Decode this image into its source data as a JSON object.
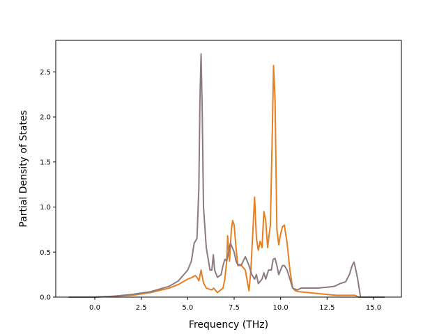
{
  "chart_data": {
    "type": "line",
    "title": "",
    "xlabel": "Frequency (THz)",
    "ylabel": "Partial Density of States",
    "xlim": [
      -2.1,
      16.5
    ],
    "ylim": [
      0.0,
      2.85
    ],
    "xticks": [
      0.0,
      2.5,
      5.0,
      7.5,
      10.0,
      12.5,
      15.0
    ],
    "xtick_labels": [
      "0.0",
      "2.5",
      "5.0",
      "7.5",
      "10.0",
      "12.5",
      "15.0"
    ],
    "yticks": [
      0.0,
      0.5,
      1.0,
      1.5,
      2.0,
      2.5
    ],
    "ytick_labels": [
      "0.0",
      "0.5",
      "1.0",
      "1.5",
      "2.0",
      "2.5"
    ],
    "grid": false,
    "legend": "none",
    "series": [
      {
        "color": "#e67e22",
        "points": [
          [
            -1.4,
            0.0
          ],
          [
            0.0,
            0.0
          ],
          [
            1.0,
            0.01
          ],
          [
            2.0,
            0.02
          ],
          [
            3.0,
            0.05
          ],
          [
            4.0,
            0.1
          ],
          [
            4.5,
            0.14
          ],
          [
            5.0,
            0.2
          ],
          [
            5.25,
            0.22
          ],
          [
            5.4,
            0.24
          ],
          [
            5.5,
            0.22
          ],
          [
            5.6,
            0.18
          ],
          [
            5.72,
            0.3
          ],
          [
            5.85,
            0.16
          ],
          [
            6.0,
            0.1
          ],
          [
            6.3,
            0.08
          ],
          [
            6.4,
            0.1
          ],
          [
            6.6,
            0.05
          ],
          [
            6.9,
            0.1
          ],
          [
            7.0,
            0.2
          ],
          [
            7.1,
            0.4
          ],
          [
            7.15,
            0.68
          ],
          [
            7.25,
            0.4
          ],
          [
            7.35,
            0.75
          ],
          [
            7.42,
            0.85
          ],
          [
            7.5,
            0.8
          ],
          [
            7.6,
            0.55
          ],
          [
            7.7,
            0.35
          ],
          [
            7.9,
            0.35
          ],
          [
            8.1,
            0.3
          ],
          [
            8.3,
            0.07
          ],
          [
            8.4,
            0.3
          ],
          [
            8.5,
            0.7
          ],
          [
            8.6,
            1.11
          ],
          [
            8.7,
            0.65
          ],
          [
            8.8,
            0.52
          ],
          [
            8.9,
            0.62
          ],
          [
            9.0,
            0.55
          ],
          [
            9.1,
            0.95
          ],
          [
            9.2,
            0.85
          ],
          [
            9.3,
            0.55
          ],
          [
            9.45,
            0.8
          ],
          [
            9.55,
            1.8
          ],
          [
            9.62,
            2.57
          ],
          [
            9.7,
            2.2
          ],
          [
            9.8,
            0.75
          ],
          [
            9.9,
            0.58
          ],
          [
            10.0,
            0.7
          ],
          [
            10.1,
            0.78
          ],
          [
            10.2,
            0.8
          ],
          [
            10.35,
            0.6
          ],
          [
            10.5,
            0.3
          ],
          [
            10.65,
            0.1
          ],
          [
            10.8,
            0.07
          ],
          [
            11.0,
            0.06
          ],
          [
            11.5,
            0.05
          ],
          [
            12.0,
            0.04
          ],
          [
            12.5,
            0.03
          ],
          [
            13.0,
            0.02
          ],
          [
            13.5,
            0.02
          ],
          [
            14.0,
            0.02
          ],
          [
            14.2,
            0.0
          ],
          [
            15.6,
            0.0
          ]
        ]
      },
      {
        "color": "#8b7b80",
        "points": [
          [
            -1.4,
            0.0
          ],
          [
            0.0,
            0.0
          ],
          [
            1.0,
            0.01
          ],
          [
            2.0,
            0.03
          ],
          [
            3.0,
            0.06
          ],
          [
            4.0,
            0.12
          ],
          [
            4.5,
            0.18
          ],
          [
            5.0,
            0.3
          ],
          [
            5.2,
            0.4
          ],
          [
            5.35,
            0.6
          ],
          [
            5.5,
            0.65
          ],
          [
            5.6,
            1.2
          ],
          [
            5.66,
            2.2
          ],
          [
            5.72,
            2.7
          ],
          [
            5.78,
            2.1
          ],
          [
            5.85,
            1.0
          ],
          [
            6.0,
            0.55
          ],
          [
            6.2,
            0.3
          ],
          [
            6.3,
            0.3
          ],
          [
            6.38,
            0.47
          ],
          [
            6.45,
            0.3
          ],
          [
            6.6,
            0.22
          ],
          [
            6.8,
            0.25
          ],
          [
            6.9,
            0.35
          ],
          [
            7.0,
            0.42
          ],
          [
            7.1,
            0.4
          ],
          [
            7.2,
            0.5
          ],
          [
            7.3,
            0.6
          ],
          [
            7.4,
            0.55
          ],
          [
            7.5,
            0.5
          ],
          [
            7.6,
            0.4
          ],
          [
            7.7,
            0.36
          ],
          [
            7.9,
            0.36
          ],
          [
            8.1,
            0.45
          ],
          [
            8.3,
            0.35
          ],
          [
            8.45,
            0.25
          ],
          [
            8.6,
            0.2
          ],
          [
            8.7,
            0.25
          ],
          [
            8.8,
            0.15
          ],
          [
            9.0,
            0.2
          ],
          [
            9.1,
            0.27
          ],
          [
            9.2,
            0.2
          ],
          [
            9.35,
            0.3
          ],
          [
            9.5,
            0.3
          ],
          [
            9.6,
            0.42
          ],
          [
            9.7,
            0.43
          ],
          [
            9.8,
            0.35
          ],
          [
            9.9,
            0.25
          ],
          [
            10.0,
            0.3
          ],
          [
            10.1,
            0.35
          ],
          [
            10.2,
            0.35
          ],
          [
            10.35,
            0.3
          ],
          [
            10.5,
            0.2
          ],
          [
            10.65,
            0.1
          ],
          [
            10.9,
            0.08
          ],
          [
            11.1,
            0.1
          ],
          [
            11.5,
            0.1
          ],
          [
            12.0,
            0.1
          ],
          [
            12.5,
            0.11
          ],
          [
            12.9,
            0.12
          ],
          [
            13.2,
            0.15
          ],
          [
            13.5,
            0.17
          ],
          [
            13.7,
            0.25
          ],
          [
            13.85,
            0.35
          ],
          [
            13.95,
            0.39
          ],
          [
            14.05,
            0.3
          ],
          [
            14.15,
            0.2
          ],
          [
            14.3,
            0.0
          ],
          [
            15.6,
            0.0
          ]
        ]
      }
    ]
  }
}
